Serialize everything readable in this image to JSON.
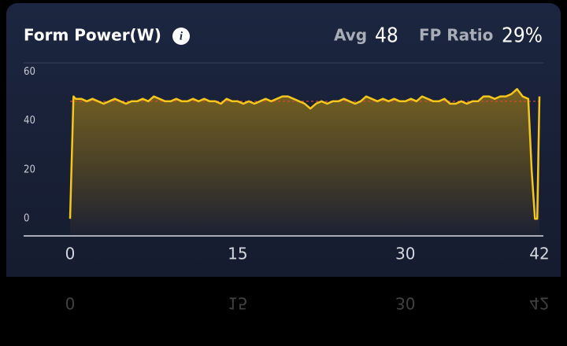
{
  "header": {
    "title": "Form Power(W)",
    "avg_label": "Avg",
    "avg_value": 48,
    "ratio_label": "FP Ratio",
    "ratio_value": "29%"
  },
  "chart_data": {
    "type": "area",
    "x": [
      0,
      0.3,
      0.5,
      1,
      1.5,
      2,
      2.5,
      3,
      3.5,
      4,
      4.5,
      5,
      5.5,
      6,
      6.5,
      7,
      7.5,
      8,
      8.5,
      9,
      9.5,
      10,
      10.5,
      11,
      11.5,
      12,
      12.5,
      13,
      13.5,
      14,
      14.5,
      15,
      15.5,
      16,
      16.5,
      17,
      17.5,
      18,
      18.5,
      19,
      19.5,
      20,
      20.5,
      21,
      21.5,
      22,
      22.5,
      23,
      23.5,
      24,
      24.5,
      25,
      25.5,
      26,
      26.5,
      27,
      27.5,
      28,
      28.5,
      29,
      29.5,
      30,
      30.5,
      31,
      31.5,
      32,
      32.5,
      33,
      33.5,
      34,
      34.5,
      35,
      35.5,
      36,
      36.5,
      37,
      37.5,
      38,
      38.5,
      39,
      39.5,
      40,
      40.5,
      41,
      41.3,
      41.6,
      41.8,
      42
    ],
    "values": [
      0,
      50,
      49,
      49,
      48,
      49,
      48,
      47,
      48,
      49,
      48,
      47,
      48,
      48,
      49,
      48,
      50,
      49,
      48,
      48,
      49,
      48,
      48,
      49,
      48,
      49,
      48,
      48,
      47,
      49,
      48,
      48,
      47,
      48,
      47,
      48,
      49,
      48,
      49,
      50,
      50,
      49,
      48,
      47,
      45,
      47,
      48,
      47,
      48,
      48,
      49,
      48,
      47,
      48,
      50,
      49,
      48,
      49,
      48,
      49,
      48,
      48,
      49,
      48,
      50,
      49,
      48,
      48,
      49,
      47,
      47,
      48,
      47,
      48,
      48,
      50,
      50,
      49,
      50,
      50,
      51,
      53,
      50,
      49,
      20,
      0,
      0,
      50
    ],
    "color": "#f7c61a",
    "xlim": [
      0,
      42
    ],
    "xticks": [
      0,
      15,
      30,
      42
    ],
    "ylim": [
      -7,
      64
    ],
    "yticks": [
      0,
      20,
      40,
      60
    ]
  }
}
